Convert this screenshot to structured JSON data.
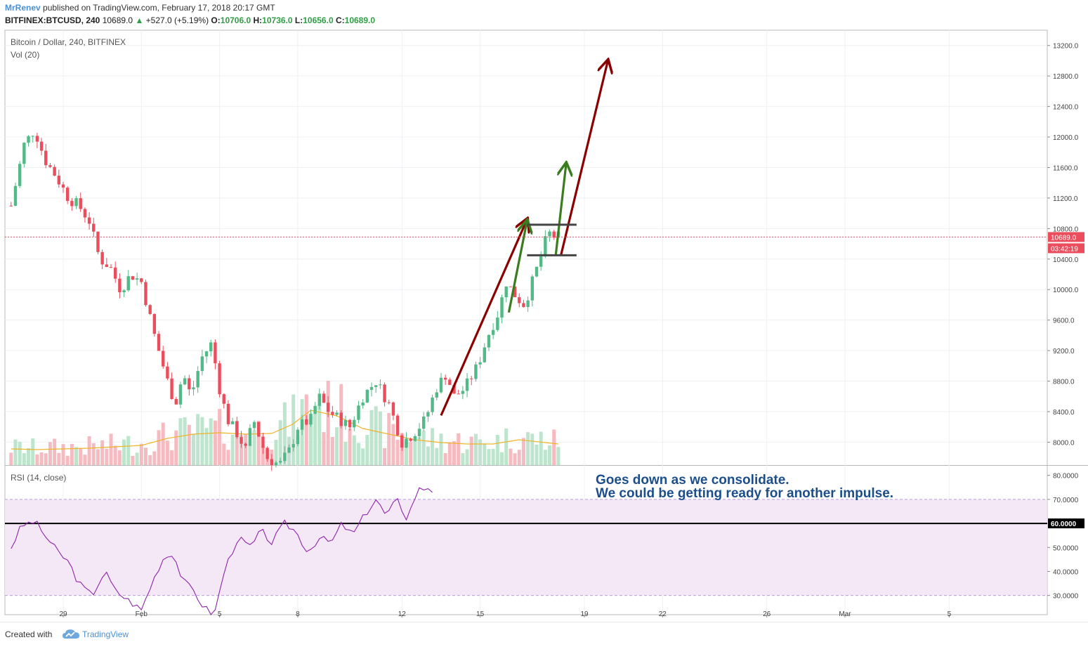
{
  "header": {
    "author": "MrRenev",
    "published": "published on TradingView.com, February 17, 2018 20:17 GMT",
    "symbol": "BITFINEX:BTCUSD, 240",
    "last": "10689.0",
    "change": "+527.0 (+5.19%)",
    "o_label": "O:",
    "o": "10706.0",
    "h_label": "H:",
    "h": "10736.0",
    "l_label": "L:",
    "l": "10656.0",
    "c_label": "C:",
    "c": "10689.0"
  },
  "footer": {
    "created": "Created with",
    "brand": "TradingView"
  },
  "colors": {
    "up": "#53b987",
    "down": "#eb4d5c",
    "rsi": "#8e24aa",
    "arrow_red": "#8b0000",
    "arrow_green": "#3a7d1f",
    "price_tag": "#eb4d5c",
    "annotation": "#1c4e8c"
  },
  "icons": {
    "logo": "tradingview-cloud-icon",
    "price_line_arrow": "up-triangle-icon"
  },
  "chart_data": [
    {
      "type": "candlestick",
      "title": "Bitcoin / Dollar, 240, BITFINEX",
      "volume_label": "Vol (20)",
      "ylim": [
        7700,
        13400
      ],
      "yticks": [
        "13200.0",
        "12800.0",
        "12400.0",
        "12000.0",
        "11600.0",
        "11200.0",
        "10800.0",
        "10400.0",
        "10000.0",
        "9600.0",
        "9200.0",
        "8800.0",
        "8400.0",
        "8000.0"
      ],
      "xticks": [
        "29",
        "Feb",
        "5",
        "8",
        "12",
        "15",
        "19",
        "22",
        "26",
        "Mar",
        "5"
      ],
      "current_price": "10689.0",
      "countdown": "03:42:19",
      "anchors_close": [
        [
          27.0,
          11100
        ],
        [
          27.5,
          11900
        ],
        [
          27.9,
          12100
        ],
        [
          28.3,
          11700
        ],
        [
          28.7,
          11500
        ],
        [
          29.2,
          11200
        ],
        [
          29.6,
          11100
        ],
        [
          30.0,
          10900
        ],
        [
          30.4,
          10400
        ],
        [
          30.8,
          10300
        ],
        [
          31.2,
          10000
        ],
        [
          31.6,
          10200
        ],
        [
          32.0,
          10100
        ],
        [
          32.5,
          9400
        ],
        [
          33.0,
          8800
        ],
        [
          33.3,
          8500
        ],
        [
          33.6,
          8900
        ],
        [
          33.9,
          8600
        ],
        [
          34.3,
          9100
        ],
        [
          34.7,
          9300
        ],
        [
          35.0,
          8700
        ],
        [
          35.3,
          8300
        ],
        [
          35.7,
          8100
        ],
        [
          36.0,
          7900
        ],
        [
          36.3,
          8300
        ],
        [
          36.8,
          7800
        ],
        [
          37.3,
          7700
        ],
        [
          37.7,
          7900
        ],
        [
          38.0,
          8200
        ],
        [
          38.5,
          8300
        ],
        [
          38.8,
          8600
        ],
        [
          39.2,
          8400
        ],
        [
          39.6,
          8300
        ],
        [
          40.0,
          8200
        ],
        [
          40.5,
          8600
        ],
        [
          41.0,
          8800
        ],
        [
          41.5,
          8500
        ],
        [
          41.8,
          8200
        ],
        [
          42.0,
          8000
        ],
        [
          42.4,
          8100
        ],
        [
          42.9,
          8300
        ],
        [
          43.3,
          8700
        ],
        [
          43.7,
          8900
        ],
        [
          44.0,
          8600
        ],
        [
          44.4,
          8700
        ],
        [
          44.9,
          9000
        ],
        [
          45.3,
          9400
        ],
        [
          45.7,
          9700
        ],
        [
          46.0,
          10100
        ],
        [
          46.4,
          9900
        ],
        [
          46.7,
          9800
        ],
        [
          47.0,
          10100
        ],
        [
          47.4,
          10500
        ],
        [
          47.6,
          10750
        ],
        [
          47.8,
          10700
        ],
        [
          48.0,
          10689
        ]
      ],
      "volume_ma": [
        [
          27.0,
          23
        ],
        [
          28.0,
          22
        ],
        [
          29.0,
          23
        ],
        [
          30.0,
          24
        ],
        [
          31.0,
          26
        ],
        [
          32.0,
          28
        ],
        [
          33.0,
          38
        ],
        [
          34.0,
          44
        ],
        [
          35.0,
          46
        ],
        [
          36.0,
          44
        ],
        [
          37.0,
          45
        ],
        [
          37.8,
          58
        ],
        [
          38.5,
          78
        ],
        [
          39.5,
          70
        ],
        [
          40.5,
          52
        ],
        [
          41.5,
          44
        ],
        [
          42.5,
          36
        ],
        [
          43.5,
          32
        ],
        [
          44.5,
          30
        ],
        [
          45.5,
          30
        ],
        [
          46.5,
          36
        ],
        [
          47.5,
          32
        ],
        [
          48.0,
          30
        ]
      ],
      "drawings": [
        {
          "type": "arrow",
          "color": "red",
          "from": [
            43.5,
            8350
          ],
          "to": [
            46.8,
            10920
          ]
        },
        {
          "type": "arrow",
          "color": "green",
          "from": [
            46.1,
            9700
          ],
          "to": [
            46.8,
            10900
          ]
        },
        {
          "type": "arrow",
          "color": "green",
          "from": [
            47.9,
            10450
          ],
          "to": [
            48.3,
            11650
          ]
        },
        {
          "type": "arrow",
          "color": "red",
          "from": [
            48.1,
            10450
          ],
          "to": [
            49.9,
            13000
          ]
        },
        {
          "type": "hline",
          "color": "dark",
          "from": 46.8,
          "to": 48.7,
          "y": 10850
        },
        {
          "type": "hline",
          "color": "dark",
          "from": 46.8,
          "to": 48.7,
          "y": 10450
        }
      ]
    },
    {
      "type": "line",
      "title": "RSI (14, close)",
      "ylim": [
        22,
        84
      ],
      "yticks": [
        "80.0000",
        "70.0000",
        "60.0000",
        "50.0000",
        "40.0000",
        "30.0000"
      ],
      "band": [
        30,
        70
      ],
      "level": "60.0000",
      "anchors": [
        [
          27.0,
          50
        ],
        [
          27.4,
          59
        ],
        [
          27.9,
          61
        ],
        [
          28.3,
          55
        ],
        [
          28.8,
          48
        ],
        [
          29.2,
          44
        ],
        [
          29.6,
          35
        ],
        [
          30.1,
          30
        ],
        [
          30.6,
          40
        ],
        [
          31.0,
          32
        ],
        [
          31.5,
          28
        ],
        [
          32.0,
          24
        ],
        [
          32.4,
          35
        ],
        [
          32.8,
          45
        ],
        [
          33.2,
          48
        ],
        [
          33.6,
          36
        ],
        [
          34.0,
          32
        ],
        [
          34.4,
          25
        ],
        [
          34.8,
          22
        ],
        [
          35.2,
          41
        ],
        [
          35.7,
          54
        ],
        [
          36.2,
          50
        ],
        [
          36.6,
          57
        ],
        [
          37.0,
          52
        ],
        [
          37.5,
          60
        ],
        [
          37.9,
          57
        ],
        [
          38.4,
          48
        ],
        [
          38.8,
          54
        ],
        [
          39.3,
          52
        ],
        [
          39.7,
          60
        ],
        [
          40.1,
          55
        ],
        [
          40.6,
          64
        ],
        [
          41.0,
          70
        ],
        [
          41.4,
          63
        ],
        [
          41.8,
          70
        ],
        [
          42.2,
          62
        ],
        [
          42.6,
          74
        ],
        [
          43.0,
          75
        ],
        [
          43.3,
          73
        ]
      ]
    }
  ],
  "annotation": {
    "line1": "Goes down as we consolidate.",
    "line2": "We could be getting ready for another impulse."
  }
}
